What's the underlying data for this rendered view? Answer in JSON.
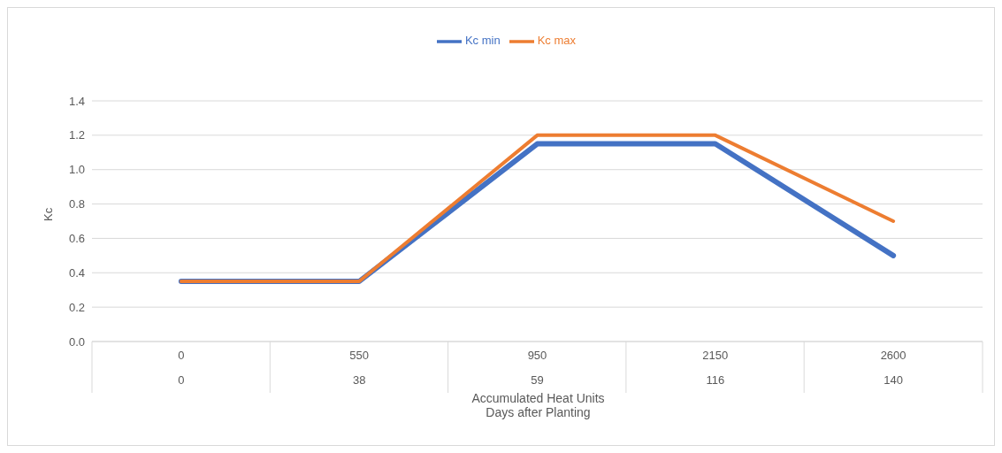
{
  "chart_data": {
    "type": "line",
    "xlabel": "Accumulated Heat Units\nDays after Planting",
    "ylabel": "Kc",
    "categories": [
      "0\n0",
      "550\n38",
      "950\n59",
      "2150\n116",
      "2600\n140"
    ],
    "series": [
      {
        "name": "Kc min",
        "color": "#4472c4",
        "values": [
          0.35,
          0.35,
          1.15,
          1.15,
          0.5
        ]
      },
      {
        "name": "Kc max",
        "color": "#ed7d31",
        "values": [
          0.35,
          0.35,
          1.2,
          1.2,
          0.7
        ]
      }
    ],
    "ylim": [
      0,
      1.4
    ],
    "yticks": [
      {
        "value": 0,
        "label": "0.0"
      },
      0.2,
      0.4,
      0.6,
      0.8,
      {
        "value": 1,
        "label": "1.0"
      },
      1.2,
      1.4
    ],
    "grid": "y",
    "legend": "top",
    "marker": "none",
    "line_style": "solid"
  }
}
